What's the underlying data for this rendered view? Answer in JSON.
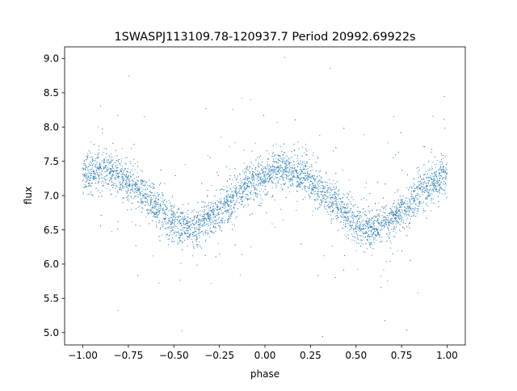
{
  "chart_data": {
    "type": "scatter",
    "title": "1SWASPJ113109.78-120937.7 Period 20992.69922s",
    "xlabel": "phase",
    "ylabel": "flux",
    "xlim": [
      -1.1,
      1.1
    ],
    "ylim": [
      4.82,
      9.17
    ],
    "x_ticks": [
      -1.0,
      -0.75,
      -0.5,
      -0.25,
      0.0,
      0.25,
      0.5,
      0.75,
      1.0
    ],
    "x_tick_labels": [
      "−1.00",
      "−0.75",
      "−0.50",
      "−0.25",
      "0.00",
      "0.25",
      "0.50",
      "0.75",
      "1.00"
    ],
    "y_ticks": [
      5.0,
      5.5,
      6.0,
      6.5,
      7.0,
      7.5,
      8.0,
      8.5,
      9.0
    ],
    "y_tick_labels": [
      "5.0",
      "5.5",
      "6.0",
      "6.5",
      "7.0",
      "7.5",
      "8.0",
      "8.5",
      "9.0"
    ],
    "grid": false,
    "legend": "none",
    "marker_color": "#1f77b4",
    "series": [
      {
        "x": [
          -1.0,
          -0.9,
          -0.8,
          -0.7,
          -0.6,
          -0.5,
          -0.42,
          -0.3,
          -0.2,
          -0.1,
          0.0,
          0.08,
          0.2,
          0.3,
          0.4,
          0.5,
          0.58,
          0.7,
          0.8,
          0.9,
          1.0
        ],
        "y": [
          7.3,
          7.35,
          7.3,
          7.1,
          6.85,
          6.6,
          6.5,
          6.65,
          6.9,
          7.15,
          7.3,
          7.38,
          7.3,
          7.1,
          6.85,
          6.6,
          6.5,
          6.65,
          6.9,
          7.15,
          7.3
        ]
      }
    ]
  }
}
